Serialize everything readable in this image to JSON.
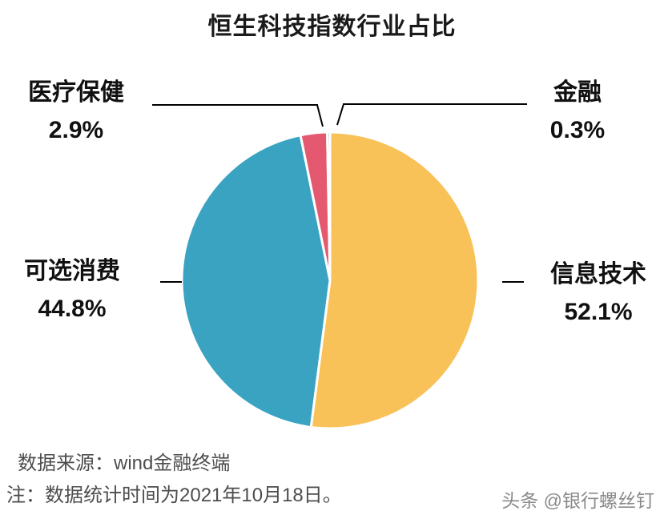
{
  "chart_data": {
    "type": "pie",
    "title": "恒生科技指数行业占比",
    "direction": "clockwise",
    "start_angle_deg": 0,
    "legend_position": "none",
    "slices": [
      {
        "label": "信息技术",
        "value": 52.1,
        "pct_label": "52.1%",
        "color": "#F8C259"
      },
      {
        "label": "可选消费",
        "value": 44.8,
        "pct_label": "44.8%",
        "color": "#3AA3C2"
      },
      {
        "label": "医疗保健",
        "value": 2.9,
        "pct_label": "2.9%",
        "color": "#E4596F"
      },
      {
        "label": "金融",
        "value": 0.3,
        "pct_label": "0.3%",
        "color": "#9BA6AD"
      }
    ],
    "colors": {
      "title_text": "#1a1a1a",
      "label_text": "#111111",
      "leader_line": "#000000",
      "footer_text": "#4d4d4d",
      "watermark_text": "#8a8a8a"
    }
  },
  "footer": {
    "source": "数据来源：wind金融终端",
    "note": "注：数据统计时间为2021年10月18日。"
  },
  "watermark": "头条 @银行螺丝钉"
}
